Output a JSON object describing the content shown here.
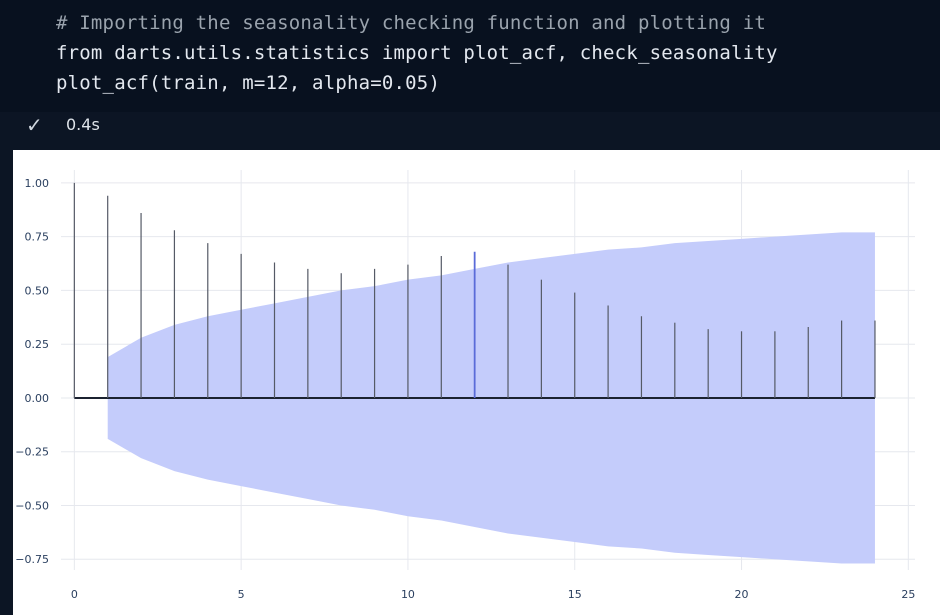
{
  "code": {
    "lines": [
      "# Importing the seasonality checking function and plotting it",
      "from darts.utils.statistics import plot_acf, check_seasonality",
      "plot_acf(train, m=12, alpha=0.05)"
    ]
  },
  "status": {
    "check_icon": "check-icon",
    "duration": "0.4s"
  },
  "chart_data": {
    "type": "bar",
    "title": "",
    "xlabel": "",
    "ylabel": "",
    "x": [
      0,
      1,
      2,
      3,
      4,
      5,
      6,
      7,
      8,
      9,
      10,
      11,
      12,
      13,
      14,
      15,
      16,
      17,
      18,
      19,
      20,
      21,
      22,
      23,
      24
    ],
    "values": [
      1.0,
      0.94,
      0.86,
      0.78,
      0.72,
      0.67,
      0.63,
      0.6,
      0.58,
      0.6,
      0.62,
      0.66,
      0.68,
      0.62,
      0.55,
      0.49,
      0.43,
      0.38,
      0.35,
      0.32,
      0.31,
      0.31,
      0.33,
      0.36,
      0.36
    ],
    "highlight_lag": 12,
    "confidence_band": {
      "x": [
        1,
        2,
        3,
        4,
        5,
        6,
        7,
        8,
        9,
        10,
        11,
        12,
        13,
        14,
        15,
        16,
        17,
        18,
        19,
        20,
        21,
        22,
        23,
        24
      ],
      "upper": [
        0.19,
        0.28,
        0.34,
        0.38,
        0.41,
        0.44,
        0.47,
        0.5,
        0.52,
        0.55,
        0.57,
        0.6,
        0.63,
        0.65,
        0.67,
        0.69,
        0.7,
        0.72,
        0.73,
        0.74,
        0.75,
        0.76,
        0.77,
        0.77
      ],
      "color": "#c4ccfb"
    },
    "xlim": [
      -0.4,
      25.2
    ],
    "ylim": [
      -0.8,
      1.06
    ],
    "x_ticks": [
      "0",
      "5",
      "10",
      "15",
      "20",
      "25"
    ],
    "y_ticks": [
      "1.00",
      "0.75",
      "0.50",
      "0.25",
      "0.00",
      "−0.25",
      "−0.50",
      "−0.75"
    ],
    "grid": true,
    "legend": "none",
    "colors": {
      "stem": "#555a66",
      "highlight": "#5a6bd8",
      "zero_line": "#1b2230"
    }
  }
}
